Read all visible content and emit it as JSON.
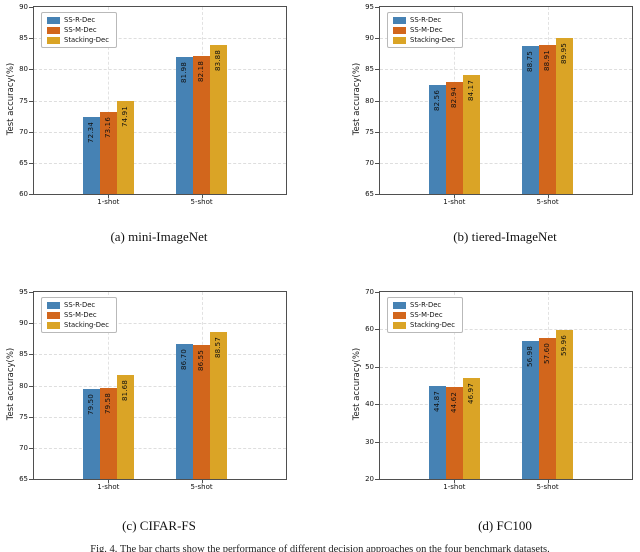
{
  "figure": {
    "captions": [
      "(a) mini-ImageNet",
      "(b) tiered-ImageNet",
      "(c) CIFAR-FS",
      "(d) FC100"
    ],
    "bottom_caption": "Fig. 4. The bar charts show the performance of different decision approaches on the four benchmark datasets.",
    "ylabel": "Test accuracy(%)"
  },
  "legend": {
    "items": [
      {
        "label": "SS-R-Dec",
        "color": "#4682B4"
      },
      {
        "label": "SS-M-Dec",
        "color": "#D2661C"
      },
      {
        "label": "Stacking-Dec",
        "color": "#DAA426"
      }
    ]
  },
  "chart_data": [
    {
      "type": "bar",
      "title": "(a) mini-ImageNet",
      "categories": [
        "1-shot",
        "5-shot"
      ],
      "series": [
        {
          "name": "SS-R-Dec",
          "color": "#4682B4",
          "values": [
            72.34,
            81.98
          ]
        },
        {
          "name": "SS-M-Dec",
          "color": "#D2661C",
          "values": [
            73.16,
            82.18
          ]
        },
        {
          "name": "Stacking-Dec",
          "color": "#DAA426",
          "values": [
            74.91,
            83.88
          ]
        }
      ],
      "xlabel": "",
      "ylabel": "Test accuracy(%)",
      "ylim": [
        60,
        90
      ],
      "yticks": [
        60,
        65,
        70,
        75,
        80,
        85,
        90
      ],
      "grid": true,
      "legend_position": "upper left"
    },
    {
      "type": "bar",
      "title": "(b) tiered-ImageNet",
      "categories": [
        "1-shot",
        "5-shot"
      ],
      "series": [
        {
          "name": "SS-R-Dec",
          "color": "#4682B4",
          "values": [
            82.56,
            88.75
          ]
        },
        {
          "name": "SS-M-Dec",
          "color": "#D2661C",
          "values": [
            82.94,
            88.91
          ]
        },
        {
          "name": "Stacking-Dec",
          "color": "#DAA426",
          "values": [
            84.17,
            89.95
          ]
        }
      ],
      "xlabel": "",
      "ylabel": "Test accuracy(%)",
      "ylim": [
        65,
        95
      ],
      "yticks": [
        65,
        70,
        75,
        80,
        85,
        90,
        95
      ],
      "grid": true,
      "legend_position": "upper left"
    },
    {
      "type": "bar",
      "title": "(c) CIFAR-FS",
      "categories": [
        "1-shot",
        "5-shot"
      ],
      "series": [
        {
          "name": "SS-R-Dec",
          "color": "#4682B4",
          "values": [
            79.5,
            86.7
          ]
        },
        {
          "name": "SS-M-Dec",
          "color": "#D2661C",
          "values": [
            79.58,
            86.55
          ]
        },
        {
          "name": "Stacking-Dec",
          "color": "#DAA426",
          "values": [
            81.68,
            88.57
          ]
        }
      ],
      "xlabel": "",
      "ylabel": "Test accuracy(%)",
      "ylim": [
        65,
        95
      ],
      "yticks": [
        65,
        70,
        75,
        80,
        85,
        90,
        95
      ],
      "grid": true,
      "legend_position": "upper left"
    },
    {
      "type": "bar",
      "title": "(d) FC100",
      "categories": [
        "1-shot",
        "5-shot"
      ],
      "series": [
        {
          "name": "SS-R-Dec",
          "color": "#4682B4",
          "values": [
            44.87,
            56.98
          ]
        },
        {
          "name": "SS-M-Dec",
          "color": "#D2661C",
          "values": [
            44.62,
            57.6
          ]
        },
        {
          "name": "Stacking-Dec",
          "color": "#DAA426",
          "values": [
            46.97,
            59.96
          ]
        }
      ],
      "xlabel": "",
      "ylabel": "Test accuracy(%)",
      "ylim": [
        20,
        70
      ],
      "yticks": [
        20,
        30,
        40,
        50,
        60,
        70
      ],
      "grid": true,
      "legend_position": "upper left"
    }
  ]
}
